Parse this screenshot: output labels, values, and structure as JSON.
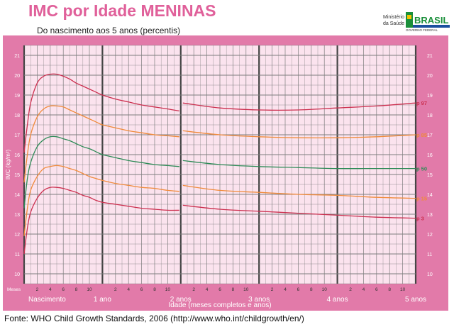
{
  "header": {
    "title": "IMC por Idade MENINAS",
    "subtitle": "Do nascimento aos 5 anos (percentis)",
    "ministry_label": "Ministério\nda Saúde",
    "gov_logo_text": "BRASIL",
    "gov_logo_subtext": "GOVERNO FEDERAL"
  },
  "footer": {
    "source": "Fonte: WHO Child Growth Standards, 2006 (http://www.who.int/childgrowth/en/)"
  },
  "colors": {
    "frame": "#e27aa9",
    "plot_bg": "#fbe3ee",
    "grid": "#7d7d7d",
    "p97": "#cc2f4f",
    "p85": "#f08a3a",
    "p50": "#2e8b57",
    "p15": "#f08a3a",
    "p3": "#cc2f4f"
  },
  "chart_data": {
    "type": "line",
    "title": "IMC por Idade MENINAS",
    "subtitle": "Do nascimento aos 5 anos (percentis)",
    "xlabel": "Idade (meses completos e anos)",
    "ylabel": "IMC (kg/m²)",
    "x_unit_label": "Meses",
    "xlim": [
      0,
      60
    ],
    "ylim": [
      9.5,
      21.5
    ],
    "y_ticks": [
      10,
      11,
      12,
      13,
      14,
      15,
      16,
      17,
      18,
      19,
      20,
      21
    ],
    "x_major_labels": [
      {
        "x": 0,
        "label": "Nascimento"
      },
      {
        "x": 12,
        "label": "1 ano"
      },
      {
        "x": 24,
        "label": "2 anos"
      },
      {
        "x": 36,
        "label": "3 anos"
      },
      {
        "x": 48,
        "label": "4 anos"
      },
      {
        "x": 60,
        "label": "5 anos"
      }
    ],
    "x_minor_labels": [
      "2",
      "4",
      "6",
      "8",
      "10"
    ],
    "grid": true,
    "series": [
      {
        "name": "p 97",
        "color": "#cc2f4f",
        "segment1": {
          "x": [
            0,
            0.5,
            1,
            2,
            3,
            4,
            5,
            6,
            7,
            8,
            9,
            10,
            11,
            12,
            14,
            16,
            18,
            20,
            22,
            24
          ],
          "y": [
            16.1,
            17.5,
            18.6,
            19.6,
            19.95,
            20.05,
            20.05,
            19.95,
            19.8,
            19.6,
            19.45,
            19.3,
            19.15,
            19.0,
            18.8,
            18.65,
            18.5,
            18.4,
            18.3,
            18.2
          ]
        },
        "segment2": {
          "x": [
            24,
            30,
            36,
            42,
            48,
            54,
            60
          ],
          "y": [
            18.6,
            18.35,
            18.25,
            18.25,
            18.35,
            18.45,
            18.6
          ]
        }
      },
      {
        "name": "p 85",
        "color": "#f08a3a",
        "segment1": {
          "x": [
            0,
            0.5,
            1,
            2,
            3,
            4,
            5,
            6,
            7,
            8,
            9,
            10,
            11,
            12,
            14,
            16,
            18,
            20,
            22,
            24
          ],
          "y": [
            14.6,
            16.0,
            17.0,
            17.9,
            18.3,
            18.45,
            18.45,
            18.4,
            18.25,
            18.1,
            17.95,
            17.8,
            17.65,
            17.5,
            17.35,
            17.2,
            17.1,
            17.0,
            16.95,
            16.9
          ]
        },
        "segment2": {
          "x": [
            24,
            30,
            36,
            42,
            48,
            54,
            60
          ],
          "y": [
            17.2,
            17.0,
            16.9,
            16.85,
            16.85,
            16.9,
            17.0
          ]
        }
      },
      {
        "name": "p 50",
        "color": "#2e8b57",
        "segment1": {
          "x": [
            0,
            0.5,
            1,
            2,
            3,
            4,
            5,
            6,
            7,
            8,
            9,
            10,
            11,
            12,
            14,
            16,
            18,
            20,
            22,
            24
          ],
          "y": [
            13.3,
            14.8,
            15.6,
            16.4,
            16.75,
            16.9,
            16.9,
            16.8,
            16.7,
            16.55,
            16.4,
            16.3,
            16.15,
            16.0,
            15.85,
            15.7,
            15.6,
            15.5,
            15.45,
            15.4
          ]
        },
        "segment2": {
          "x": [
            24,
            30,
            36,
            42,
            48,
            54,
            60
          ],
          "y": [
            15.7,
            15.5,
            15.4,
            15.35,
            15.3,
            15.3,
            15.3
          ]
        }
      },
      {
        "name": "p 15",
        "color": "#f08a3a",
        "segment1": {
          "x": [
            0,
            0.5,
            1,
            2,
            3,
            4,
            5,
            6,
            7,
            8,
            9,
            10,
            11,
            12,
            14,
            16,
            18,
            20,
            22,
            24
          ],
          "y": [
            11.9,
            13.3,
            14.2,
            14.9,
            15.3,
            15.4,
            15.45,
            15.4,
            15.3,
            15.2,
            15.05,
            14.9,
            14.8,
            14.7,
            14.55,
            14.45,
            14.35,
            14.3,
            14.2,
            14.15
          ]
        },
        "segment2": {
          "x": [
            24,
            30,
            36,
            42,
            48,
            54,
            60
          ],
          "y": [
            14.45,
            14.2,
            14.1,
            14.0,
            13.95,
            13.85,
            13.8
          ]
        }
      },
      {
        "name": "p 3",
        "color": "#cc2f4f",
        "segment1": {
          "x": [
            0,
            0.5,
            1,
            2,
            3,
            4,
            5,
            6,
            7,
            8,
            9,
            10,
            11,
            12,
            14,
            16,
            18,
            20,
            22,
            24
          ],
          "y": [
            11.0,
            12.3,
            13.1,
            13.8,
            14.2,
            14.35,
            14.35,
            14.3,
            14.2,
            14.1,
            13.95,
            13.85,
            13.7,
            13.6,
            13.5,
            13.4,
            13.3,
            13.25,
            13.2,
            13.2
          ]
        },
        "segment2": {
          "x": [
            24,
            30,
            36,
            42,
            48,
            54,
            60
          ],
          "y": [
            13.45,
            13.25,
            13.15,
            13.05,
            12.95,
            12.85,
            12.8
          ]
        }
      }
    ]
  }
}
